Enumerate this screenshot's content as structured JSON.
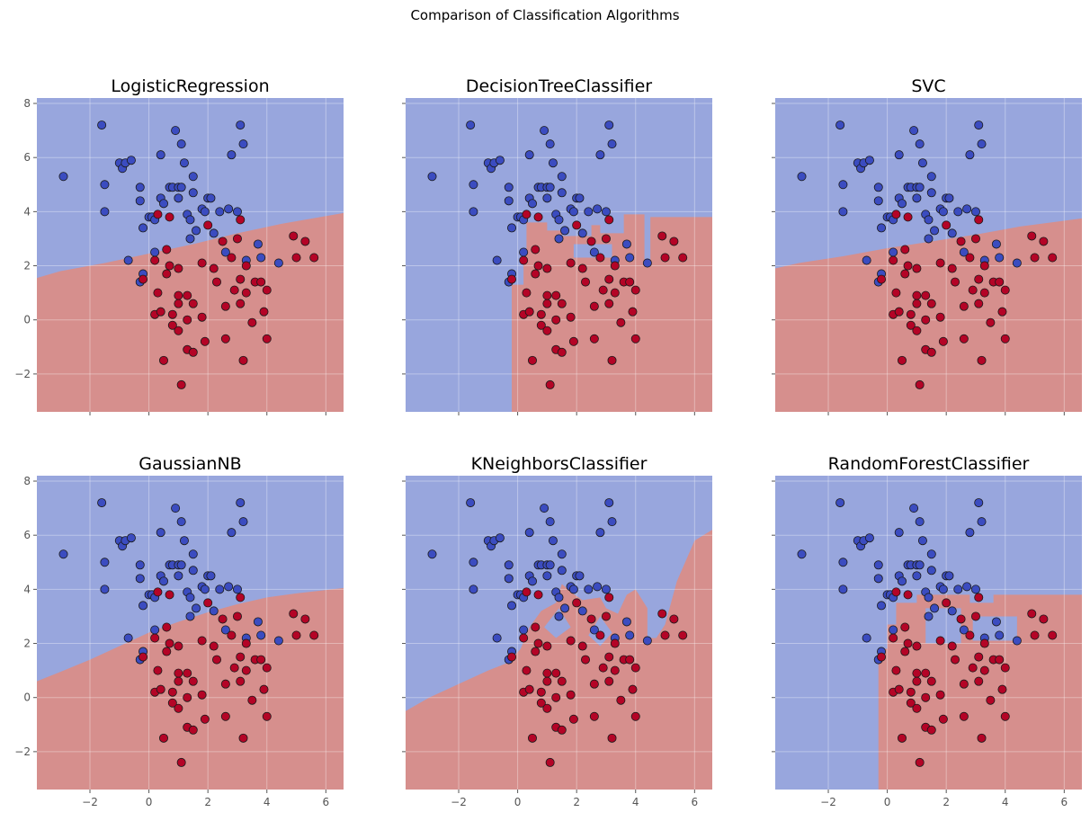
{
  "figure": {
    "title": "Comparison of Classification Algorithms",
    "colors": {
      "class0_region": "#98a6dd",
      "class1_region": "#d68f8d",
      "class0_point": "#3b4cc0",
      "class1_point": "#b40426"
    }
  },
  "axes": {
    "xlim": [
      -3.8,
      6.6
    ],
    "ylim": [
      -3.4,
      8.2
    ],
    "xticks": [
      -2,
      0,
      2,
      4,
      6
    ],
    "yticks": [
      -2,
      0,
      2,
      4,
      6,
      8
    ],
    "xtick_labels": [
      "−2",
      "0",
      "2",
      "4",
      "6"
    ],
    "ytick_labels": [
      "−2",
      "0",
      "2",
      "4",
      "6",
      "8"
    ]
  },
  "chart_data": {
    "type": "scatter",
    "grid": true,
    "points": [
      {
        "x": -2.9,
        "y": 5.3,
        "c": 0
      },
      {
        "x": -1.6,
        "y": 7.2,
        "c": 0
      },
      {
        "x": -1.5,
        "y": 5.0,
        "c": 0
      },
      {
        "x": -1.5,
        "y": 4.0,
        "c": 0
      },
      {
        "x": -1.0,
        "y": 5.8,
        "c": 0
      },
      {
        "x": -0.9,
        "y": 5.6,
        "c": 0
      },
      {
        "x": -0.8,
        "y": 5.8,
        "c": 0
      },
      {
        "x": -0.6,
        "y": 5.9,
        "c": 0
      },
      {
        "x": -0.3,
        "y": 4.9,
        "c": 0
      },
      {
        "x": -0.3,
        "y": 4.4,
        "c": 0
      },
      {
        "x": -0.7,
        "y": 2.2,
        "c": 0
      },
      {
        "x": -0.3,
        "y": 1.4,
        "c": 0
      },
      {
        "x": -0.2,
        "y": 1.7,
        "c": 0
      },
      {
        "x": -0.2,
        "y": 3.4,
        "c": 0
      },
      {
        "x": 0.0,
        "y": 3.8,
        "c": 0
      },
      {
        "x": 0.1,
        "y": 3.8,
        "c": 0
      },
      {
        "x": 0.2,
        "y": 3.7,
        "c": 0
      },
      {
        "x": 0.2,
        "y": 2.5,
        "c": 0
      },
      {
        "x": 0.4,
        "y": 6.1,
        "c": 0
      },
      {
        "x": 0.4,
        "y": 4.5,
        "c": 0
      },
      {
        "x": 0.5,
        "y": 4.3,
        "c": 0
      },
      {
        "x": 0.7,
        "y": 4.9,
        "c": 0
      },
      {
        "x": 0.8,
        "y": 4.9,
        "c": 0
      },
      {
        "x": 0.9,
        "y": 7.0,
        "c": 0
      },
      {
        "x": 1.0,
        "y": 4.5,
        "c": 0
      },
      {
        "x": 1.0,
        "y": 4.9,
        "c": 0
      },
      {
        "x": 1.1,
        "y": 4.9,
        "c": 0
      },
      {
        "x": 1.1,
        "y": 6.5,
        "c": 0
      },
      {
        "x": 1.2,
        "y": 5.8,
        "c": 0
      },
      {
        "x": 1.3,
        "y": 3.9,
        "c": 0
      },
      {
        "x": 1.4,
        "y": 3.7,
        "c": 0
      },
      {
        "x": 1.4,
        "y": 3.0,
        "c": 0
      },
      {
        "x": 1.5,
        "y": 4.7,
        "c": 0
      },
      {
        "x": 1.5,
        "y": 5.3,
        "c": 0
      },
      {
        "x": 1.6,
        "y": 3.3,
        "c": 0
      },
      {
        "x": 1.8,
        "y": 4.1,
        "c": 0
      },
      {
        "x": 1.9,
        "y": 4.0,
        "c": 0
      },
      {
        "x": 2.0,
        "y": 4.5,
        "c": 0
      },
      {
        "x": 2.1,
        "y": 4.5,
        "c": 0
      },
      {
        "x": 2.2,
        "y": 3.2,
        "c": 0
      },
      {
        "x": 2.4,
        "y": 4.0,
        "c": 0
      },
      {
        "x": 2.6,
        "y": 2.5,
        "c": 0
      },
      {
        "x": 2.7,
        "y": 4.1,
        "c": 0
      },
      {
        "x": 2.8,
        "y": 6.1,
        "c": 0
      },
      {
        "x": 3.0,
        "y": 4.0,
        "c": 0
      },
      {
        "x": 3.1,
        "y": 7.2,
        "c": 0
      },
      {
        "x": 3.2,
        "y": 6.5,
        "c": 0
      },
      {
        "x": 3.3,
        "y": 2.2,
        "c": 0
      },
      {
        "x": 3.7,
        "y": 2.8,
        "c": 0
      },
      {
        "x": 3.8,
        "y": 2.3,
        "c": 0
      },
      {
        "x": 4.4,
        "y": 2.1,
        "c": 0
      },
      {
        "x": -0.2,
        "y": 1.5,
        "c": 1
      },
      {
        "x": 0.2,
        "y": 2.2,
        "c": 1
      },
      {
        "x": 0.2,
        "y": 0.2,
        "c": 1
      },
      {
        "x": 0.3,
        "y": 3.9,
        "c": 1
      },
      {
        "x": 0.3,
        "y": 1.0,
        "c": 1
      },
      {
        "x": 0.4,
        "y": 0.3,
        "c": 1
      },
      {
        "x": 0.5,
        "y": -1.5,
        "c": 1
      },
      {
        "x": 0.6,
        "y": 1.7,
        "c": 1
      },
      {
        "x": 0.6,
        "y": 2.6,
        "c": 1
      },
      {
        "x": 0.7,
        "y": 3.8,
        "c": 1
      },
      {
        "x": 0.7,
        "y": 2.0,
        "c": 1
      },
      {
        "x": 0.8,
        "y": 0.2,
        "c": 1
      },
      {
        "x": 0.8,
        "y": -0.2,
        "c": 1
      },
      {
        "x": 1.0,
        "y": 0.9,
        "c": 1
      },
      {
        "x": 1.0,
        "y": 1.9,
        "c": 1
      },
      {
        "x": 1.0,
        "y": 0.6,
        "c": 1
      },
      {
        "x": 1.0,
        "y": -0.4,
        "c": 1
      },
      {
        "x": 1.1,
        "y": -2.4,
        "c": 1
      },
      {
        "x": 1.3,
        "y": 0.0,
        "c": 1
      },
      {
        "x": 1.3,
        "y": 0.9,
        "c": 1
      },
      {
        "x": 1.3,
        "y": -1.1,
        "c": 1
      },
      {
        "x": 1.5,
        "y": 0.6,
        "c": 1
      },
      {
        "x": 1.5,
        "y": -1.2,
        "c": 1
      },
      {
        "x": 1.8,
        "y": 2.1,
        "c": 1
      },
      {
        "x": 1.8,
        "y": 0.1,
        "c": 1
      },
      {
        "x": 1.9,
        "y": -0.8,
        "c": 1
      },
      {
        "x": 2.0,
        "y": 3.5,
        "c": 1
      },
      {
        "x": 2.2,
        "y": 1.9,
        "c": 1
      },
      {
        "x": 2.3,
        "y": 1.4,
        "c": 1
      },
      {
        "x": 2.5,
        "y": 2.9,
        "c": 1
      },
      {
        "x": 2.6,
        "y": 0.5,
        "c": 1
      },
      {
        "x": 2.6,
        "y": -0.7,
        "c": 1
      },
      {
        "x": 2.8,
        "y": 2.3,
        "c": 1
      },
      {
        "x": 2.9,
        "y": 1.1,
        "c": 1
      },
      {
        "x": 3.0,
        "y": 3.0,
        "c": 1
      },
      {
        "x": 3.1,
        "y": 1.5,
        "c": 1
      },
      {
        "x": 3.1,
        "y": 0.6,
        "c": 1
      },
      {
        "x": 3.2,
        "y": -1.5,
        "c": 1
      },
      {
        "x": 3.3,
        "y": 2.0,
        "c": 1
      },
      {
        "x": 3.3,
        "y": 1.0,
        "c": 1
      },
      {
        "x": 3.5,
        "y": -0.1,
        "c": 1
      },
      {
        "x": 3.6,
        "y": 1.4,
        "c": 1
      },
      {
        "x": 3.8,
        "y": 1.4,
        "c": 1
      },
      {
        "x": 3.9,
        "y": 0.3,
        "c": 1
      },
      {
        "x": 4.0,
        "y": 1.1,
        "c": 1
      },
      {
        "x": 4.0,
        "y": -0.7,
        "c": 1
      },
      {
        "x": 4.9,
        "y": 3.1,
        "c": 1
      },
      {
        "x": 5.0,
        "y": 2.3,
        "c": 1
      },
      {
        "x": 5.3,
        "y": 2.9,
        "c": 1
      },
      {
        "x": 5.6,
        "y": 2.3,
        "c": 1
      },
      {
        "x": 3.1,
        "y": 3.7,
        "c": 1
      }
    ],
    "panels": [
      {
        "title": "LogisticRegression",
        "region1": [
          [
            -3.8,
            1.55
          ],
          [
            -3,
            1.8
          ],
          [
            -1.5,
            2.1
          ],
          [
            0,
            2.45
          ],
          [
            1.5,
            2.8
          ],
          [
            3,
            3.2
          ],
          [
            4.5,
            3.55
          ],
          [
            6.6,
            3.95
          ],
          [
            6.6,
            -3.4
          ],
          [
            -3.8,
            -3.4
          ]
        ]
      },
      {
        "title": "DecisionTreeClassifier",
        "region1": [
          [
            -0.2,
            -3.4
          ],
          [
            -0.2,
            1.3
          ],
          [
            0.2,
            1.3
          ],
          [
            0.2,
            2.5
          ],
          [
            0.3,
            2.5
          ],
          [
            0.3,
            3.6
          ],
          [
            1.0,
            3.6
          ],
          [
            1.0,
            3.3
          ],
          [
            1.6,
            3.3
          ],
          [
            1.6,
            3.5
          ],
          [
            2.8,
            3.5
          ],
          [
            2.8,
            3.2
          ],
          [
            3.6,
            3.2
          ],
          [
            3.6,
            3.9
          ],
          [
            4.3,
            3.9
          ],
          [
            4.3,
            2.0
          ],
          [
            4.5,
            2.0
          ],
          [
            4.5,
            3.8
          ],
          [
            6.6,
            3.8
          ],
          [
            6.6,
            -3.4
          ]
        ],
        "holes0": [
          [
            [
              1.9,
              2.3
            ],
            [
              1.9,
              2.8
            ],
            [
              3.2,
              2.8
            ],
            [
              3.2,
              2.3
            ]
          ],
          [
            [
              1.5,
              3.1
            ],
            [
              1.5,
              3.8
            ],
            [
              2.5,
              3.8
            ],
            [
              2.5,
              3.1
            ]
          ]
        ]
      },
      {
        "title": "SVC",
        "region1": [
          [
            -3.8,
            1.9
          ],
          [
            -3,
            2.1
          ],
          [
            -1.5,
            2.35
          ],
          [
            0,
            2.65
          ],
          [
            1.5,
            2.9
          ],
          [
            3,
            3.15
          ],
          [
            4.5,
            3.45
          ],
          [
            6.6,
            3.75
          ],
          [
            6.6,
            -3.4
          ],
          [
            -3.8,
            -3.4
          ]
        ]
      },
      {
        "title": "GaussianNB",
        "region1": [
          [
            -3.8,
            0.6
          ],
          [
            -3,
            0.95
          ],
          [
            -2,
            1.4
          ],
          [
            -1,
            1.9
          ],
          [
            0,
            2.4
          ],
          [
            1,
            2.8
          ],
          [
            2,
            3.15
          ],
          [
            3,
            3.45
          ],
          [
            4,
            3.7
          ],
          [
            5,
            3.85
          ],
          [
            6.6,
            4.05
          ],
          [
            6.6,
            -3.4
          ],
          [
            -3.8,
            -3.4
          ]
        ]
      },
      {
        "title": "KNeighborsClassifier",
        "region1": [
          [
            -3.8,
            -0.5
          ],
          [
            -3,
            0.0
          ],
          [
            -2,
            0.5
          ],
          [
            -1,
            1.0
          ],
          [
            -0.3,
            1.3
          ],
          [
            0.1,
            1.8
          ],
          [
            0.4,
            2.6
          ],
          [
            0.8,
            3.2
          ],
          [
            1.3,
            3.5
          ],
          [
            1.5,
            4.2
          ],
          [
            1.8,
            3.9
          ],
          [
            2.2,
            3.6
          ],
          [
            2.8,
            3.7
          ],
          [
            3.0,
            3.3
          ],
          [
            3.4,
            3.1
          ],
          [
            3.7,
            3.8
          ],
          [
            4.0,
            4.0
          ],
          [
            4.4,
            3.3
          ],
          [
            4.4,
            2.2
          ],
          [
            4.7,
            2.2
          ],
          [
            5.0,
            2.7
          ],
          [
            5.4,
            4.3
          ],
          [
            6.0,
            5.8
          ],
          [
            6.6,
            6.2
          ],
          [
            6.6,
            -3.4
          ],
          [
            -3.8,
            -3.4
          ]
        ],
        "holes0": [
          [
            [
              0.9,
              2.6
            ],
            [
              1.4,
              3.3
            ],
            [
              1.8,
              2.6
            ],
            [
              1.3,
              2.2
            ]
          ],
          [
            [
              2.4,
              2.3
            ],
            [
              2.8,
              3.0
            ],
            [
              3.2,
              2.4
            ],
            [
              2.8,
              1.9
            ]
          ]
        ]
      },
      {
        "title": "RandomForestClassifier",
        "region1": [
          [
            -0.3,
            -3.4
          ],
          [
            -0.3,
            1.8
          ],
          [
            0.0,
            1.8
          ],
          [
            0.0,
            2.7
          ],
          [
            0.3,
            2.7
          ],
          [
            0.3,
            3.5
          ],
          [
            1.0,
            3.5
          ],
          [
            1.0,
            3.8
          ],
          [
            2.8,
            3.8
          ],
          [
            2.8,
            3.5
          ],
          [
            3.6,
            3.5
          ],
          [
            3.6,
            3.8
          ],
          [
            6.6,
            3.8
          ],
          [
            6.6,
            -3.4
          ]
        ],
        "holes0": [
          [
            [
              1.3,
              2.0
            ],
            [
              1.3,
              3.3
            ],
            [
              2.5,
              3.3
            ],
            [
              2.5,
              2.0
            ]
          ],
          [
            [
              2.9,
              2.1
            ],
            [
              2.9,
              3.0
            ],
            [
              4.4,
              3.0
            ],
            [
              4.4,
              2.1
            ]
          ]
        ]
      }
    ]
  }
}
